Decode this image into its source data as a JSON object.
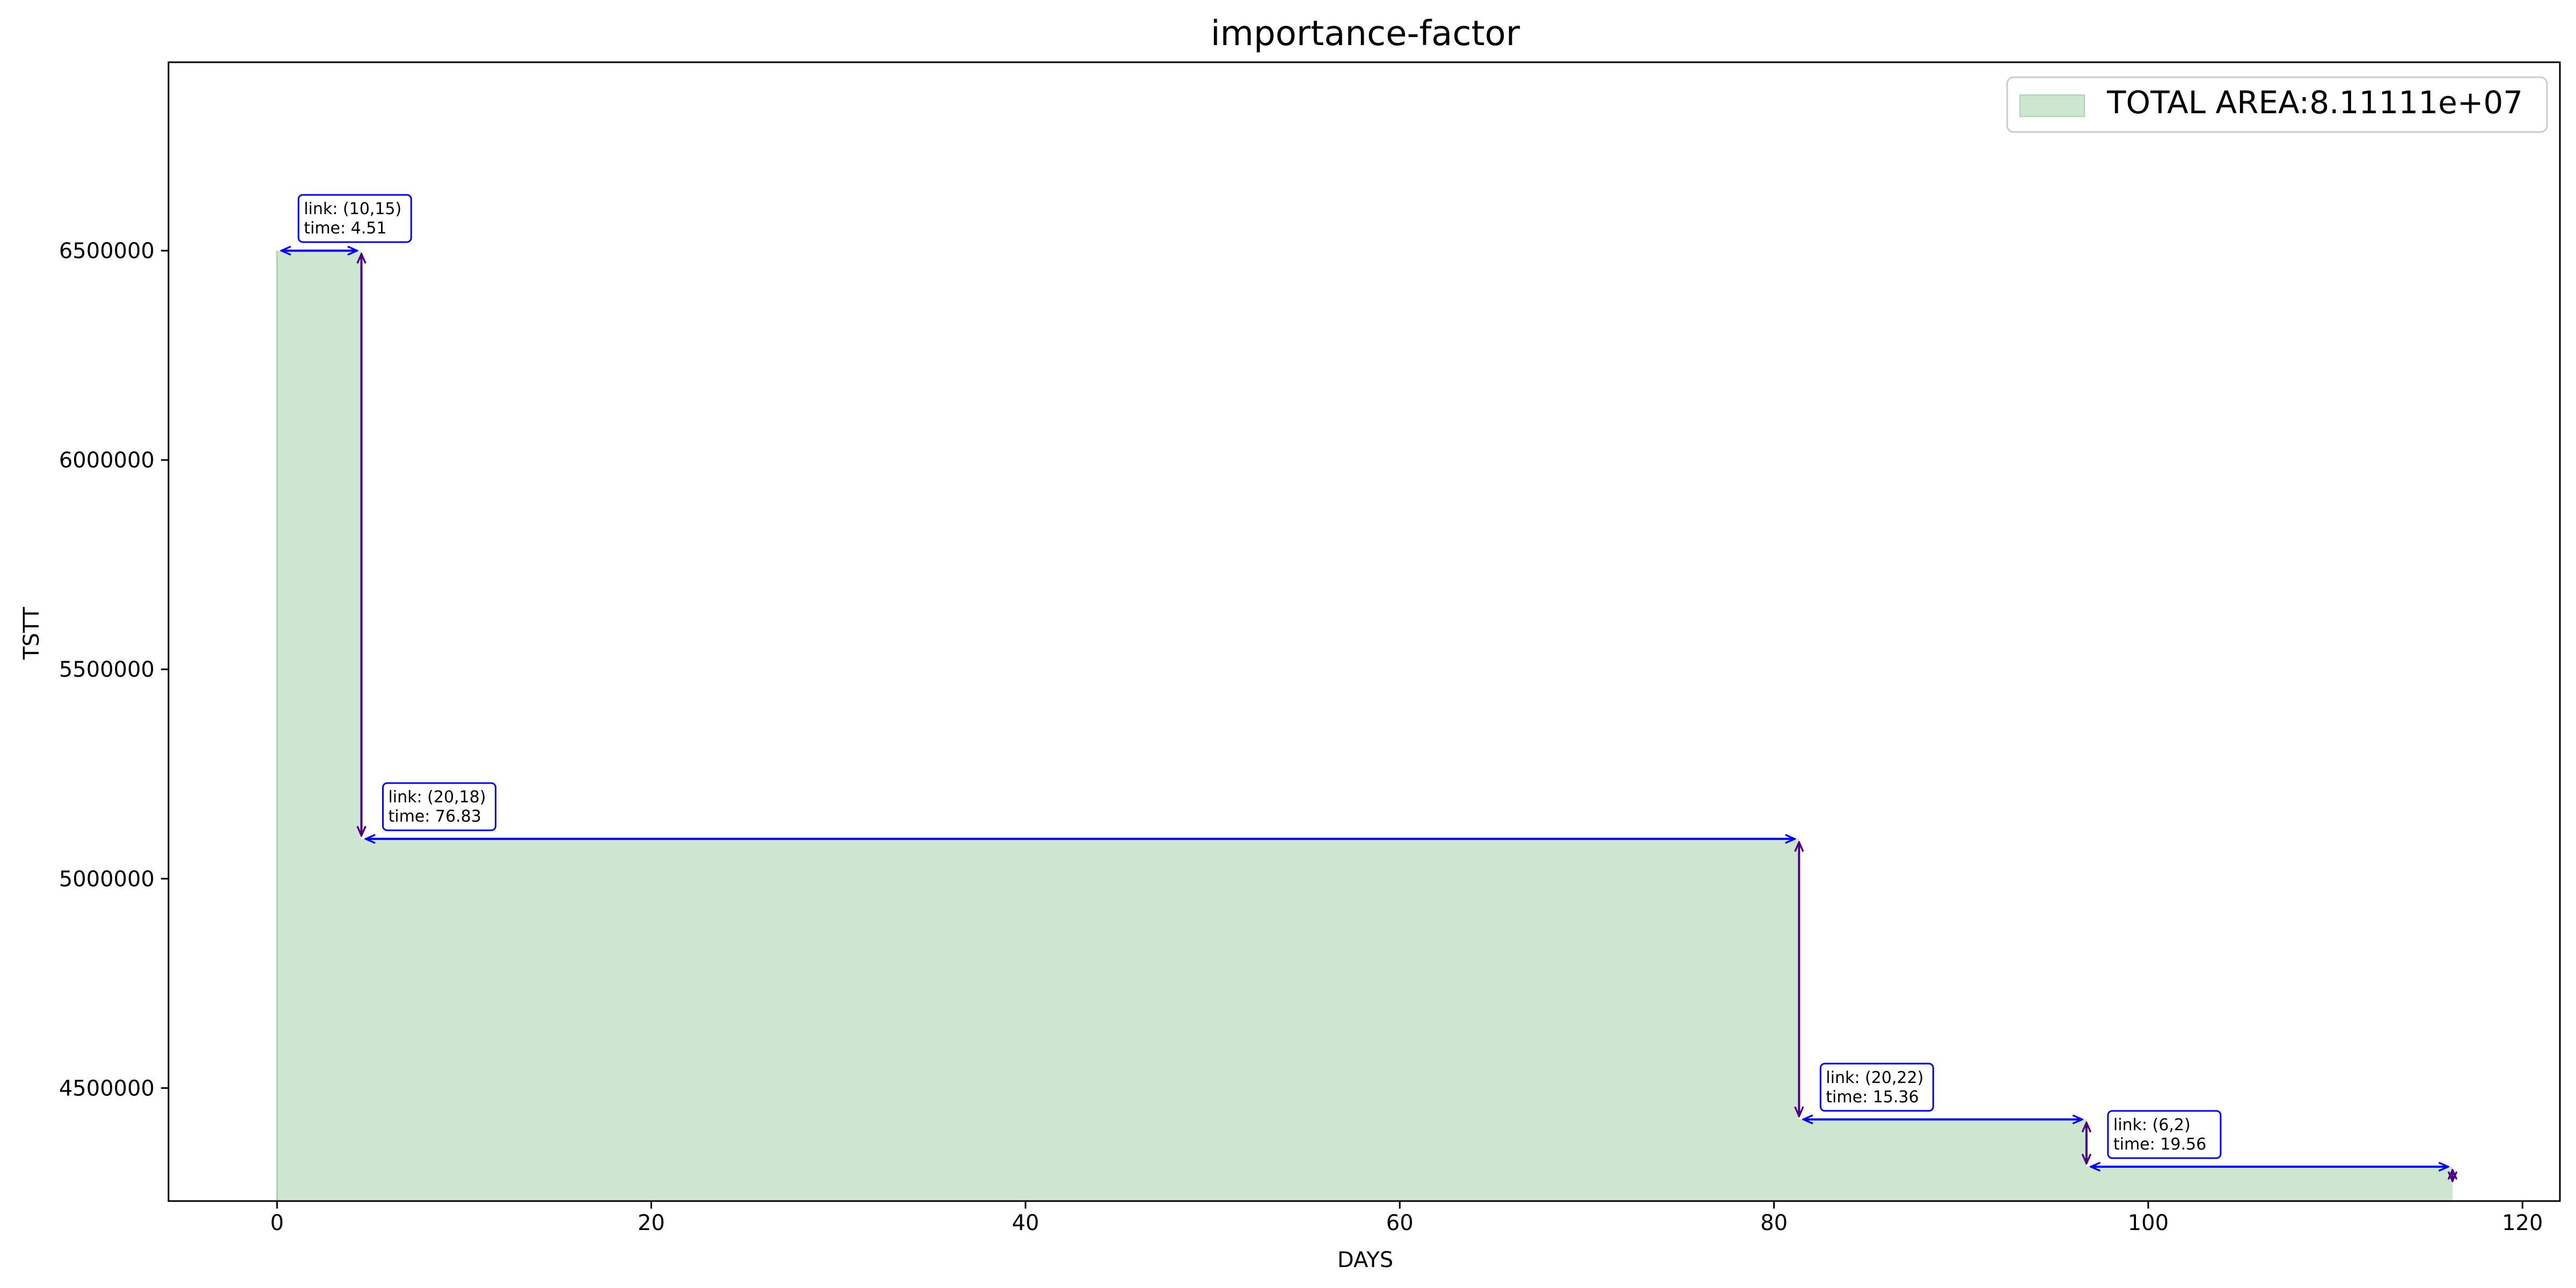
{
  "chart_data": {
    "type": "area",
    "title": "importance-factor",
    "xlabel": "DAYS",
    "ylabel": "TSTT",
    "xlim": [
      -5.8,
      122.0
    ],
    "ylim": [
      4230000,
      6950000
    ],
    "xticks": [
      0,
      20,
      40,
      60,
      80,
      100,
      120
    ],
    "xtick_labels": [
      "0",
      "20",
      "40",
      "60",
      "80",
      "100",
      "120"
    ],
    "yticks": [
      4500000,
      5000000,
      5500000,
      6000000,
      6500000
    ],
    "ytick_labels": [
      "4500000",
      "5000000",
      "5500000",
      "6000000",
      "6500000"
    ],
    "grid": false,
    "legend": {
      "position": "top-right",
      "entries": [
        {
          "label": "TOTAL AREA:8.11111e+07",
          "color": "#cde6cf"
        }
      ]
    },
    "series": [
      {
        "name": "TOTAL AREA:8.11111e+07",
        "step_x": [
          0,
          4.51,
          81.34,
          96.7,
          116.26
        ],
        "step_y": [
          6500000,
          5095000,
          4425000,
          4312000,
          4270000
        ]
      }
    ],
    "annotations": [
      {
        "lines": [
          "link: (10,15)",
          "time: 4.51"
        ],
        "x0": 0,
        "x1": 4.51,
        "y": 6500000,
        "drop_to": 5095000
      },
      {
        "lines": [
          "link: (20,18)",
          "time: 76.83"
        ],
        "x0": 4.51,
        "x1": 81.34,
        "y": 5095000,
        "drop_to": 4425000
      },
      {
        "lines": [
          "link: (20,22)",
          "time: 15.36"
        ],
        "x0": 81.34,
        "x1": 96.7,
        "y": 4425000,
        "drop_to": 4312000
      },
      {
        "lines": [
          "link: (6,2)",
          "time: 19.56"
        ],
        "x0": 96.7,
        "x1": 116.26,
        "y": 4312000,
        "drop_to": 4270000
      }
    ],
    "colors": {
      "fill": "#cde6cf",
      "fill_edge": "#a9d4ad",
      "horizontal_arrow": "#0000ff",
      "vertical_arrow": "#4b0082",
      "annotation_border": "#0000ff"
    }
  }
}
